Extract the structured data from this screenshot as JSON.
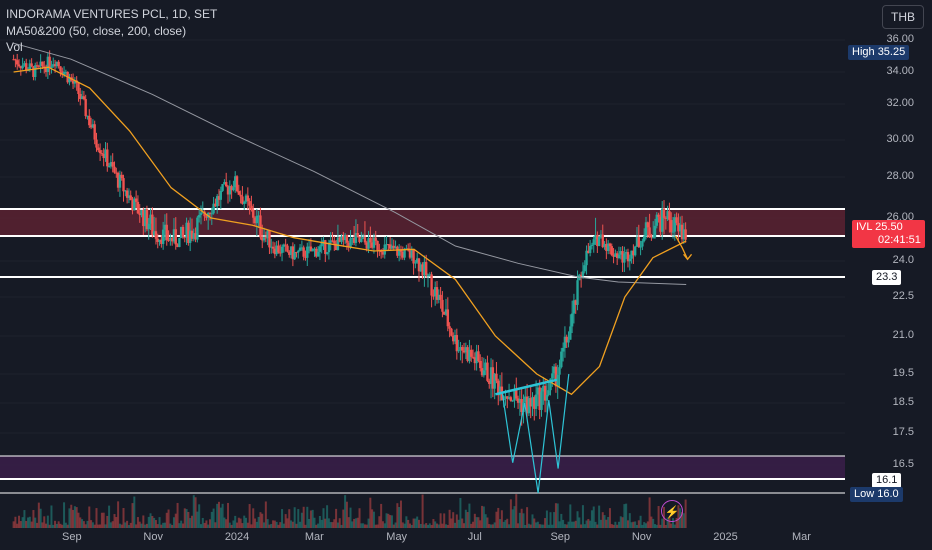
{
  "header": {
    "title": "INDORAMA VENTURES PCL, 1D, SET",
    "ma_label": "MA50&200 (50, close, 200, close)",
    "vol_label": "Vol",
    "currency": "THB"
  },
  "price_labels": {
    "high_label": "High",
    "high_value": "35.25",
    "low_label": "Low",
    "low_value": "16.0",
    "symbol": "IVL",
    "last": "25.50",
    "countdown": "02:41:51",
    "level_23": "23.3",
    "level_16": "16.1"
  },
  "chart_data": {
    "type": "candlestick",
    "title": "INDORAMA VENTURES PCL, 1D, SET",
    "y_axis_ticks": [
      "36.00",
      "34.00",
      "32.00",
      "30.00",
      "28.00",
      "26.00",
      "24.0",
      "22.5",
      "21.0",
      "19.5",
      "18.5",
      "17.5",
      "16.5"
    ],
    "x_axis_ticks": [
      "Sep",
      "Nov",
      "2024",
      "Mar",
      "May",
      "Jul",
      "Sep",
      "Nov",
      "2025",
      "Mar"
    ],
    "ylim": [
      15.7,
      36.3
    ],
    "price_path": [
      [
        "2023-07-20",
        34.8
      ],
      [
        "2023-08-05",
        34.0
      ],
      [
        "2023-08-20",
        34.8
      ],
      [
        "2023-09-05",
        33.0
      ],
      [
        "2023-09-20",
        30.0
      ],
      [
        "2023-10-05",
        28.0
      ],
      [
        "2023-10-20",
        26.5
      ],
      [
        "2023-11-05",
        25.5
      ],
      [
        "2023-11-20",
        25.2
      ],
      [
        "2023-12-05",
        25.8
      ],
      [
        "2023-12-20",
        27.0
      ],
      [
        "2024-01-01",
        27.8
      ],
      [
        "2024-01-15",
        26.2
      ],
      [
        "2024-02-01",
        24.8
      ],
      [
        "2024-02-15",
        24.4
      ],
      [
        "2024-03-01",
        24.6
      ],
      [
        "2024-03-15",
        25.0
      ],
      [
        "2024-04-01",
        25.2
      ],
      [
        "2024-04-15",
        25.0
      ],
      [
        "2024-05-01",
        24.6
      ],
      [
        "2024-05-15",
        24.3
      ],
      [
        "2024-06-01",
        22.6
      ],
      [
        "2024-06-15",
        20.8
      ],
      [
        "2024-07-01",
        20.0
      ],
      [
        "2024-07-15",
        19.2
      ],
      [
        "2024-08-01",
        18.6
      ],
      [
        "2024-08-10",
        18.4
      ],
      [
        "2024-08-25",
        19.0
      ],
      [
        "2024-09-01",
        19.8
      ],
      [
        "2024-09-10",
        21.5
      ],
      [
        "2024-09-20",
        24.2
      ],
      [
        "2024-10-01",
        25.5
      ],
      [
        "2024-10-10",
        24.6
      ],
      [
        "2024-10-20",
        24.2
      ],
      [
        "2024-11-01",
        25.3
      ],
      [
        "2024-11-10",
        25.8
      ],
      [
        "2024-11-20",
        26.2
      ],
      [
        "2024-11-28",
        25.6
      ],
      [
        "2024-12-05",
        25.5
      ]
    ],
    "ma50": [
      [
        "2023-07-20",
        34.0
      ],
      [
        "2023-08-15",
        34.3
      ],
      [
        "2023-09-15",
        33.0
      ],
      [
        "2023-10-15",
        30.5
      ],
      [
        "2023-11-15",
        27.5
      ],
      [
        "2023-12-15",
        26.0
      ],
      [
        "2024-01-15",
        25.8
      ],
      [
        "2024-02-15",
        25.4
      ],
      [
        "2024-03-15",
        25.0
      ],
      [
        "2024-04-15",
        24.6
      ],
      [
        "2024-05-15",
        24.7
      ],
      [
        "2024-06-15",
        23.2
      ],
      [
        "2024-07-15",
        21.0
      ],
      [
        "2024-08-15",
        19.5
      ],
      [
        "2024-09-10",
        18.8
      ],
      [
        "2024-10-01",
        19.8
      ],
      [
        "2024-10-20",
        22.5
      ],
      [
        "2024-11-10",
        24.2
      ],
      [
        "2024-12-05",
        25.2
      ]
    ],
    "ma200": [
      [
        "2023-07-20",
        35.8
      ],
      [
        "2023-09-01",
        34.8
      ],
      [
        "2023-11-01",
        32.6
      ],
      [
        "2024-01-01",
        30.3
      ],
      [
        "2024-03-01",
        28.3
      ],
      [
        "2024-05-01",
        26.3
      ],
      [
        "2024-06-15",
        24.9
      ],
      [
        "2024-08-01",
        23.9
      ],
      [
        "2024-09-15",
        23.3
      ],
      [
        "2024-10-15",
        23.1
      ],
      [
        "2024-12-05",
        23.0
      ]
    ],
    "zones": [
      {
        "from": 25.5,
        "to": 26.5,
        "color": "#5b2231"
      },
      {
        "from": 16.1,
        "to": 16.9,
        "color": "#3a1f4a"
      }
    ],
    "levels": [
      23.3,
      16.1,
      25.5,
      26.5
    ],
    "colors": {
      "up": "#26a69a",
      "down": "#ef5350",
      "ma50": "#f0a020",
      "ma200": "#9598a1",
      "trend": "#2ec4d6"
    }
  }
}
